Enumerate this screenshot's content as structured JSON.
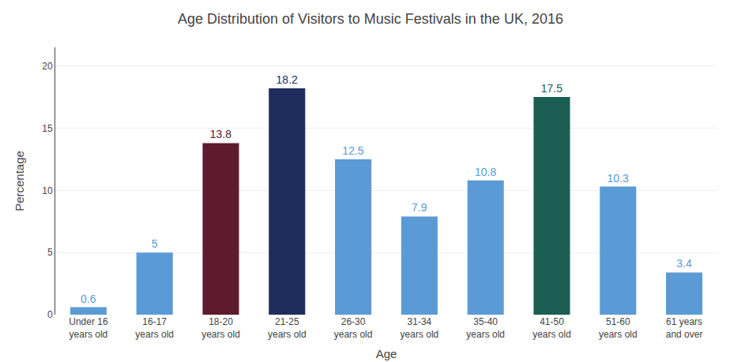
{
  "chart_data": {
    "type": "bar",
    "title": "Age Distribution of Visitors to Music Festivals in the UK, 2016",
    "xlabel": "Age",
    "ylabel": "Percentage",
    "categories": [
      "Under 16\nyears old",
      "16-17\nyears old",
      "18-20\nyears old",
      "21-25\nyears old",
      "26-30\nyears old",
      "31-34\nyears old",
      "35-40\nyears old",
      "41-50\nyears old",
      "51-60\nyears old",
      "61 years\nand over"
    ],
    "values": [
      0.6,
      5,
      13.8,
      18.2,
      12.5,
      7.9,
      10.8,
      17.5,
      10.3,
      3.4
    ],
    "colors": [
      "#5b9bd5",
      "#5b9bd5",
      "#5e1a2e",
      "#1f2d5c",
      "#5b9bd5",
      "#5b9bd5",
      "#5b9bd5",
      "#1a5e54",
      "#5b9bd5",
      "#5b9bd5"
    ],
    "ylim": [
      0,
      21.5
    ],
    "yticks": [
      0,
      5,
      10,
      15,
      20
    ],
    "grid": true,
    "data_labels": true
  }
}
